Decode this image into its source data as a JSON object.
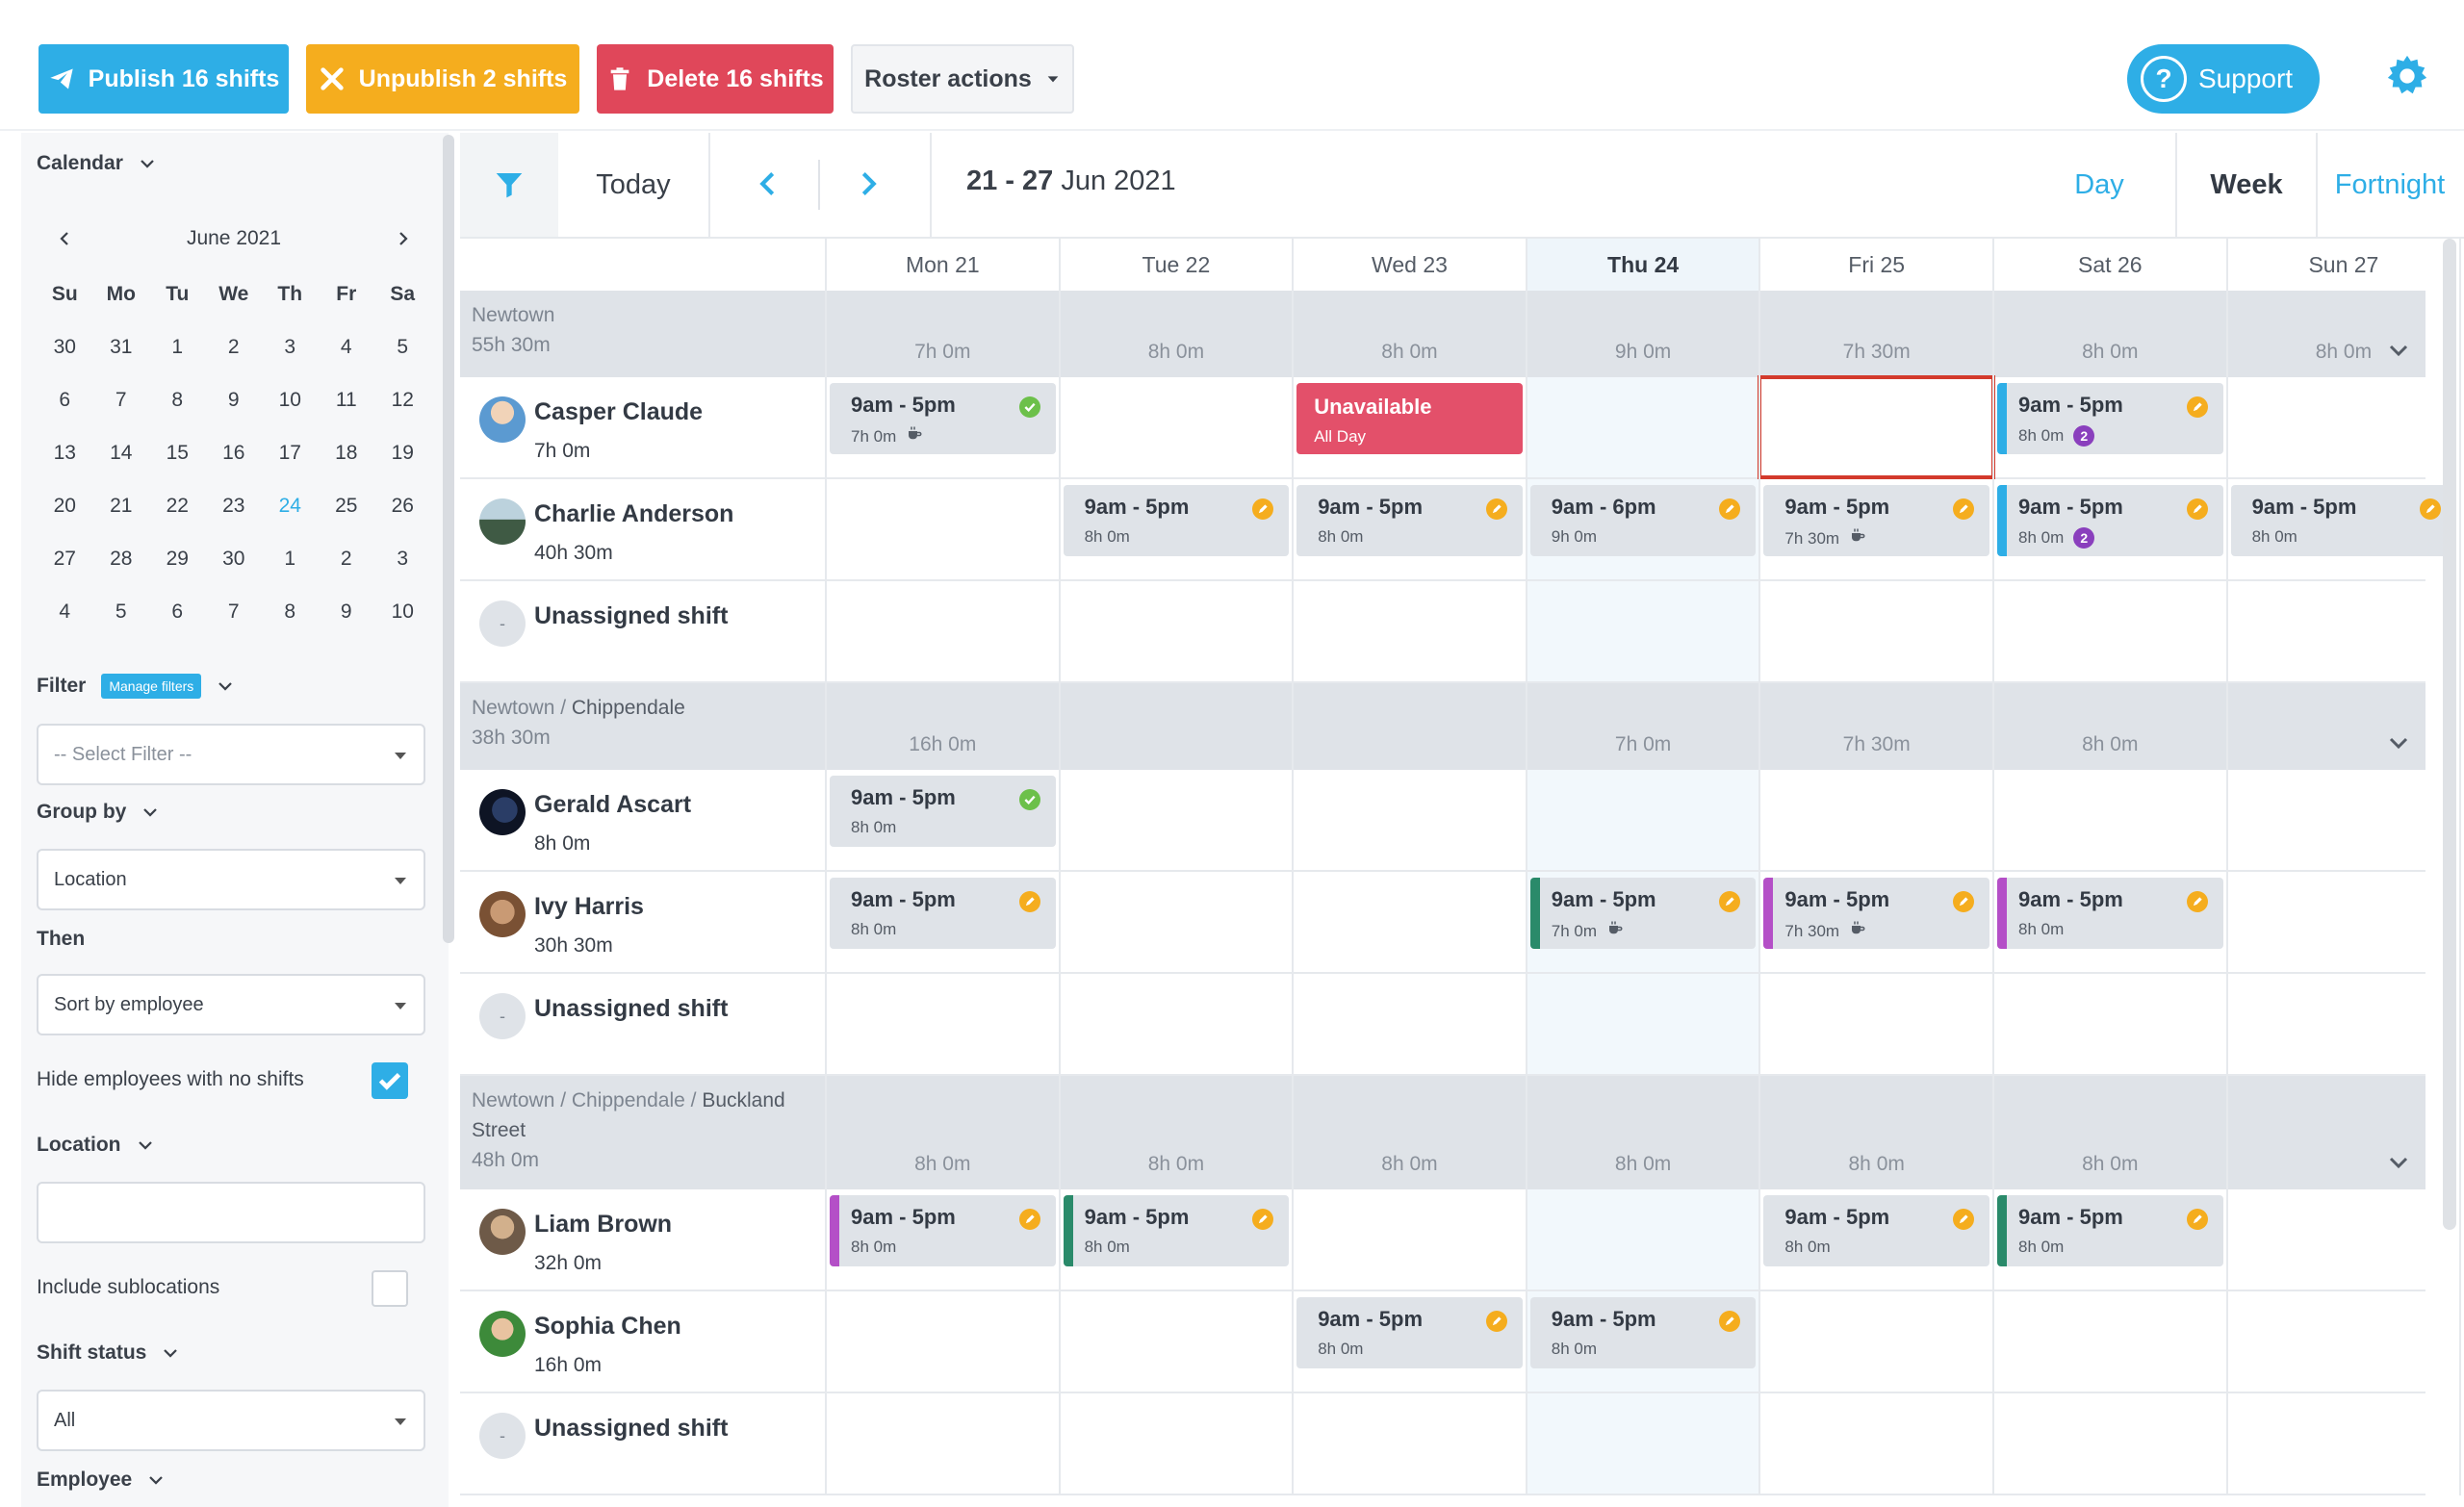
{
  "toolbar": {
    "publish": "Publish 16 shifts",
    "unpublish": "Unpublish 2 shifts",
    "delete": "Delete 16 shifts",
    "roster_actions": "Roster actions",
    "support": "Support"
  },
  "sidebar": {
    "calendar_label": "Calendar",
    "month": "June 2021",
    "weekdays": [
      "Su",
      "Mo",
      "Tu",
      "We",
      "Th",
      "Fr",
      "Sa"
    ],
    "weeks": [
      [
        "30",
        "31",
        "1",
        "2",
        "3",
        "4",
        "5"
      ],
      [
        "6",
        "7",
        "8",
        "9",
        "10",
        "11",
        "12"
      ],
      [
        "13",
        "14",
        "15",
        "16",
        "17",
        "18",
        "19"
      ],
      [
        "20",
        "21",
        "22",
        "23",
        "24",
        "25",
        "26"
      ],
      [
        "27",
        "28",
        "29",
        "30",
        "1",
        "2",
        "3"
      ],
      [
        "4",
        "5",
        "6",
        "7",
        "8",
        "9",
        "10"
      ]
    ],
    "today_day": "24",
    "filter_label": "Filter",
    "manage_filters": "Manage filters",
    "filter_placeholder": "-- Select Filter --",
    "group_by_label": "Group by",
    "group_by_value": "Location",
    "then_label": "Then",
    "then_value": "Sort by employee",
    "hide_employees_label": "Hide employees with no shifts",
    "hide_employees_checked": true,
    "location_label": "Location",
    "location_value": "",
    "include_sublocations_label": "Include sublocations",
    "include_sublocations_checked": false,
    "shift_status_label": "Shift status",
    "shift_status_value": "All",
    "employee_label": "Employee"
  },
  "main": {
    "today": "Today",
    "range_bold": "21 - 27",
    "range_rest": "Jun 2021",
    "views": [
      "Day",
      "Week",
      "Fortnight"
    ],
    "active_view": "Week",
    "days": [
      "Mon 21",
      "Tue 22",
      "Wed 23",
      "Thu 24",
      "Fri 25",
      "Sat 26",
      "Sun 27"
    ],
    "today_index": 3
  },
  "groups": [
    {
      "path": "Newtown",
      "bold": "",
      "total": "55h 30m",
      "day_totals": [
        "7h 0m",
        "8h 0m",
        "8h 0m",
        "9h 0m",
        "7h 30m",
        "8h 0m",
        "8h 0m"
      ],
      "rows": [
        {
          "name": "Casper Claude",
          "hours": "7h 0m",
          "avatar": "casper",
          "shifts": [
            {
              "day": 0,
              "time": "9am - 5pm",
              "dur": "7h 0m",
              "status": "ok",
              "extra": "break"
            },
            {
              "day": 2,
              "type": "unavailable",
              "time": "Unavailable",
              "dur": "All Day"
            },
            {
              "day": 5,
              "time": "9am - 5pm",
              "dur": "8h 0m",
              "status": "edit",
              "extra": "badge",
              "badge": "2",
              "bar": "#2eaee6"
            }
          ]
        },
        {
          "name": "Charlie Anderson",
          "hours": "40h 30m",
          "avatar": "charlie",
          "shifts": [
            {
              "day": 1,
              "time": "9am - 5pm",
              "dur": "8h 0m",
              "status": "edit"
            },
            {
              "day": 2,
              "time": "9am - 5pm",
              "dur": "8h 0m",
              "status": "edit"
            },
            {
              "day": 3,
              "time": "9am - 6pm",
              "dur": "9h 0m",
              "status": "edit"
            },
            {
              "day": 4,
              "time": "9am - 5pm",
              "dur": "7h 30m",
              "status": "edit",
              "extra": "break"
            },
            {
              "day": 5,
              "time": "9am - 5pm",
              "dur": "8h 0m",
              "status": "edit",
              "extra": "badge",
              "badge": "2",
              "bar": "#2eaee6"
            },
            {
              "day": 6,
              "time": "9am - 5pm",
              "dur": "8h 0m",
              "status": "edit"
            }
          ]
        },
        {
          "name": "Unassigned shift",
          "hours": "",
          "avatar": "dash",
          "shifts": []
        }
      ]
    },
    {
      "path": "Newtown / ",
      "bold": "Chippendale",
      "total": "38h 30m",
      "day_totals": [
        "16h 0m",
        "",
        "",
        "7h 0m",
        "7h 30m",
        "8h 0m",
        ""
      ],
      "rows": [
        {
          "name": "Gerald Ascart",
          "hours": "8h 0m",
          "avatar": "gerald",
          "shifts": [
            {
              "day": 0,
              "time": "9am - 5pm",
              "dur": "8h 0m",
              "status": "ok"
            }
          ]
        },
        {
          "name": "Ivy Harris",
          "hours": "30h 30m",
          "avatar": "ivy",
          "shifts": [
            {
              "day": 0,
              "time": "9am - 5pm",
              "dur": "8h 0m",
              "status": "edit"
            },
            {
              "day": 3,
              "time": "9am - 5pm",
              "dur": "7h 0m",
              "status": "edit",
              "extra": "break",
              "bar": "#2a8a6a"
            },
            {
              "day": 4,
              "time": "9am - 5pm",
              "dur": "7h 30m",
              "status": "edit",
              "extra": "break",
              "bar": "#b44fc7"
            },
            {
              "day": 5,
              "time": "9am - 5pm",
              "dur": "8h 0m",
              "status": "edit",
              "bar": "#b44fc7"
            }
          ]
        },
        {
          "name": "Unassigned shift",
          "hours": "",
          "avatar": "dash",
          "shifts": []
        }
      ]
    },
    {
      "path": "Newtown / Chippendale / ",
      "bold": "Buckland Street",
      "total": "48h 0m",
      "day_totals": [
        "8h 0m",
        "8h 0m",
        "8h 0m",
        "8h 0m",
        "8h 0m",
        "8h 0m",
        ""
      ],
      "rows": [
        {
          "name": "Liam Brown",
          "hours": "32h 0m",
          "avatar": "liam",
          "shifts": [
            {
              "day": 0,
              "time": "9am - 5pm",
              "dur": "8h 0m",
              "status": "edit",
              "bar": "#b44fc7"
            },
            {
              "day": 1,
              "time": "9am - 5pm",
              "dur": "8h 0m",
              "status": "edit",
              "bar": "#2a8a6a"
            },
            {
              "day": 4,
              "time": "9am - 5pm",
              "dur": "8h 0m",
              "status": "edit"
            },
            {
              "day": 5,
              "time": "9am - 5pm",
              "dur": "8h 0m",
              "status": "edit",
              "bar": "#2a8a6a"
            }
          ]
        },
        {
          "name": "Sophia Chen",
          "hours": "16h 0m",
          "avatar": "sophia",
          "shifts": [
            {
              "day": 2,
              "time": "9am - 5pm",
              "dur": "8h 0m",
              "status": "edit"
            },
            {
              "day": 3,
              "time": "9am - 5pm",
              "dur": "8h 0m",
              "status": "edit"
            }
          ]
        },
        {
          "name": "Unassigned shift",
          "hours": "",
          "avatar": "dash",
          "shifts": []
        }
      ]
    }
  ],
  "colors": {
    "primary": "#2eaee6",
    "warning": "#f5ad1e",
    "danger": "#e0475a",
    "unavailable": "#e3506a",
    "ok": "#6cc04a",
    "selected_cell": "#d33a2c"
  },
  "icons": {
    "publish": "paper-plane-icon",
    "unpublish": "x-icon",
    "delete": "trash-icon",
    "support": "question-icon",
    "settings": "gear-icon",
    "filter": "funnel-icon",
    "break": "coffee-cup-icon"
  }
}
